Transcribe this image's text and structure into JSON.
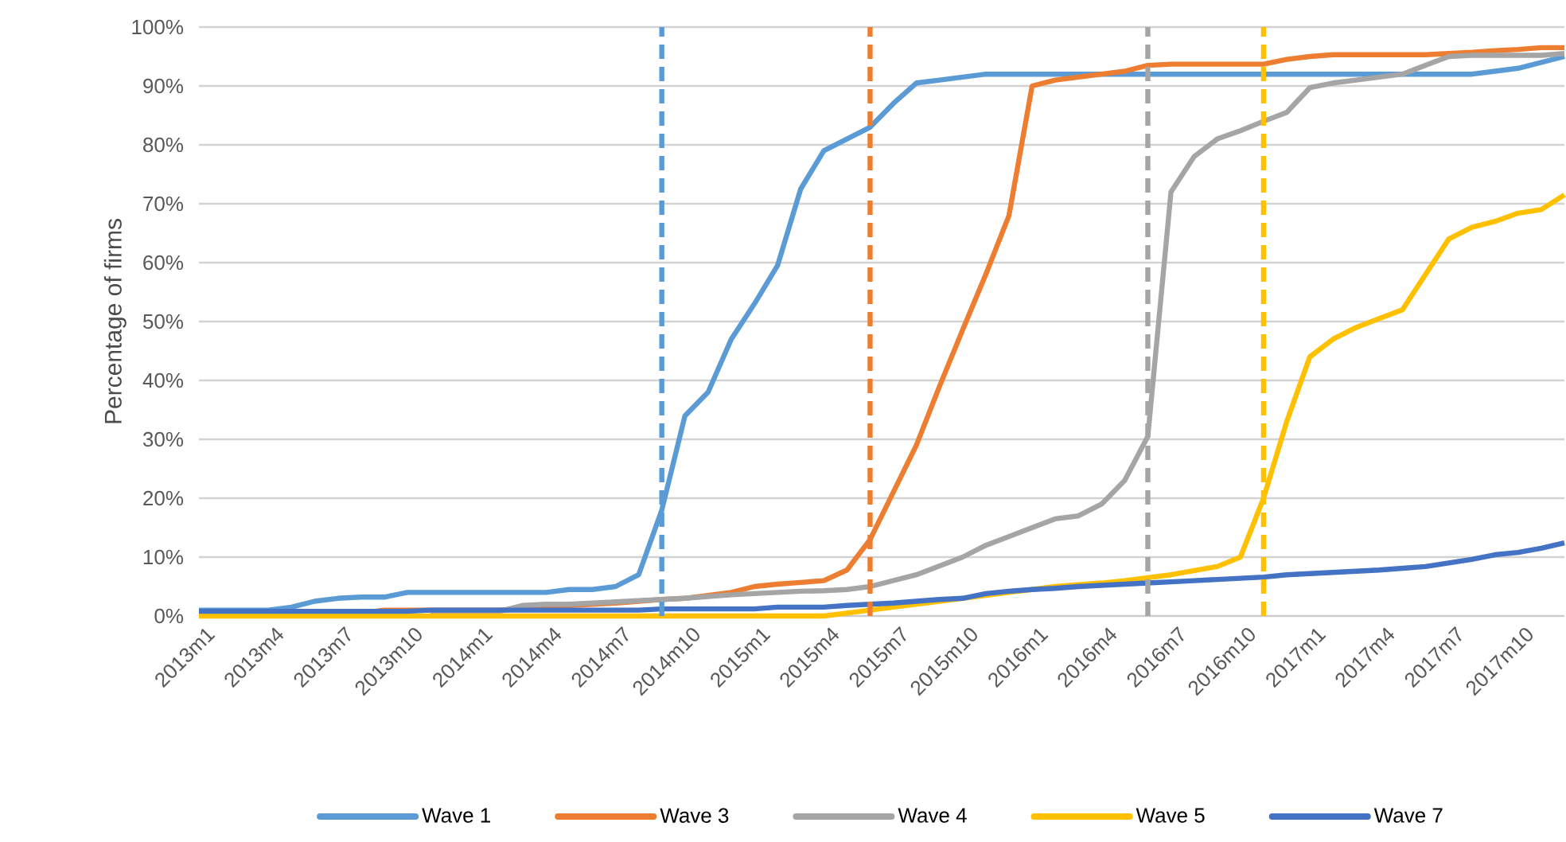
{
  "chart_data": {
    "type": "line",
    "ylabel": "Percentage of firms",
    "x": [
      "2013-01",
      "2013-02",
      "2013-03",
      "2013-04",
      "2013-05",
      "2013-06",
      "2013-07",
      "2013-08",
      "2013-09",
      "2013-10",
      "2013-11",
      "2013-12",
      "2014-01",
      "2014-02",
      "2014-03",
      "2014-04",
      "2014-05",
      "2014-06",
      "2014-07",
      "2014-08",
      "2014-09",
      "2014-10",
      "2014-11",
      "2014-12",
      "2015-01",
      "2015-02",
      "2015-03",
      "2015-04",
      "2015-05",
      "2015-06",
      "2015-07",
      "2015-08",
      "2015-09",
      "2015-10",
      "2015-11",
      "2015-12",
      "2016-01",
      "2016-02",
      "2016-03",
      "2016-04",
      "2016-05",
      "2016-06",
      "2016-07",
      "2016-08",
      "2016-09",
      "2016-10",
      "2016-11",
      "2016-12",
      "2017-01",
      "2017-02",
      "2017-03",
      "2017-04",
      "2017-05",
      "2017-06",
      "2017-07",
      "2017-08",
      "2017-09",
      "2017-10",
      "2017-11",
      "2017-12"
    ],
    "xlim": [
      "2013-01",
      "2017-12"
    ],
    "xticks": [
      {
        "value": "2013-01",
        "label": "2013m1"
      },
      {
        "value": "2013-04",
        "label": "2013m4"
      },
      {
        "value": "2013-07",
        "label": "2013m7"
      },
      {
        "value": "2013-10",
        "label": "2013m10"
      },
      {
        "value": "2014-01",
        "label": "2014m1"
      },
      {
        "value": "2014-04",
        "label": "2014m4"
      },
      {
        "value": "2014-07",
        "label": "2014m7"
      },
      {
        "value": "2014-10",
        "label": "2014m10"
      },
      {
        "value": "2015-01",
        "label": "2015m1"
      },
      {
        "value": "2015-04",
        "label": "2015m4"
      },
      {
        "value": "2015-07",
        "label": "2015m7"
      },
      {
        "value": "2015-10",
        "label": "2015m10"
      },
      {
        "value": "2016-01",
        "label": "2016m1"
      },
      {
        "value": "2016-04",
        "label": "2016m4"
      },
      {
        "value": "2016-07",
        "label": "2016m7"
      },
      {
        "value": "2016-10",
        "label": "2016m10"
      },
      {
        "value": "2017-01",
        "label": "2017m1"
      },
      {
        "value": "2017-04",
        "label": "2017m4"
      },
      {
        "value": "2017-07",
        "label": "2017m7"
      },
      {
        "value": "2017-10",
        "label": "2017m10"
      }
    ],
    "ylim": [
      0,
      100
    ],
    "yticks": [
      {
        "value": 0,
        "label": "0%"
      },
      {
        "value": 10,
        "label": "10%"
      },
      {
        "value": 20,
        "label": "20%"
      },
      {
        "value": 30,
        "label": "30%"
      },
      {
        "value": 40,
        "label": "40%"
      },
      {
        "value": 50,
        "label": "50%"
      },
      {
        "value": 60,
        "label": "60%"
      },
      {
        "value": 70,
        "label": "70%"
      },
      {
        "value": 80,
        "label": "80%"
      },
      {
        "value": 90,
        "label": "90%"
      },
      {
        "value": 100,
        "label": "100%"
      }
    ],
    "grid": "y",
    "legend": "bottom",
    "line_style": "solid",
    "marker": "none",
    "series": [
      {
        "name": "Wave 1",
        "color": "#5b9bd5",
        "values": [
          1,
          1,
          1,
          1,
          1.5,
          2.5,
          3,
          3.2,
          3.2,
          4,
          4,
          4,
          4,
          4,
          4,
          4,
          4.5,
          4.5,
          5,
          7,
          18,
          34,
          38,
          47,
          53,
          59.5,
          72.5,
          79,
          81,
          83,
          87,
          90.5,
          91,
          91.5,
          92,
          92,
          92,
          92,
          92,
          92,
          92,
          92,
          92,
          92,
          92,
          92,
          92,
          92,
          92,
          92,
          92,
          92,
          92,
          92,
          92,
          92,
          92.5,
          93,
          94,
          95
        ]
      },
      {
        "name": "Wave 3",
        "color": "#ed7d31",
        "values": [
          null,
          null,
          null,
          null,
          null,
          null,
          0.5,
          0.5,
          1,
          1,
          1,
          1,
          1,
          1,
          1.3,
          1.5,
          1.8,
          2,
          2.2,
          2.5,
          2.8,
          3,
          3.5,
          4,
          5,
          5.4,
          5.7,
          6,
          7.8,
          13,
          21,
          29,
          39,
          48.6,
          58,
          68,
          90,
          91,
          91.5,
          92,
          92.5,
          93.5,
          93.7,
          93.7,
          93.7,
          93.7,
          93.7,
          94.5,
          95,
          95.3,
          95.3,
          95.3,
          95.3,
          95.3,
          95.5,
          95.7,
          96,
          96.2,
          96.5,
          96.5
        ]
      },
      {
        "name": "Wave 4",
        "color": "#a5a5a5",
        "values": [
          null,
          null,
          null,
          null,
          null,
          null,
          null,
          null,
          null,
          null,
          0.8,
          0.8,
          0.8,
          0.8,
          1.8,
          2,
          2,
          2.2,
          2.4,
          2.6,
          2.8,
          3,
          3.3,
          3.6,
          3.8,
          4,
          4.2,
          4.3,
          4.5,
          5,
          6,
          7,
          8.5,
          10,
          12,
          13.5,
          15,
          16.5,
          17,
          19,
          23,
          30.5,
          72,
          78,
          81,
          82.4,
          84,
          85.5,
          89.7,
          90.5,
          91,
          91.5,
          92,
          93.5,
          95,
          95.2,
          95.2,
          95.2,
          95.2,
          95.5
        ]
      },
      {
        "name": "Wave 5",
        "color": "#ffc000",
        "values": [
          0,
          0,
          0,
          0,
          0,
          0,
          0,
          0,
          0,
          0,
          0,
          0,
          0,
          0,
          0,
          0,
          0,
          0,
          0,
          0,
          0,
          0,
          0,
          0,
          0,
          0,
          0,
          0,
          0.5,
          1,
          1.5,
          2,
          2.5,
          3,
          3.5,
          4,
          4.5,
          5,
          5.3,
          5.6,
          6,
          6.5,
          7,
          7.7,
          8.4,
          10,
          20,
          33,
          44,
          47,
          49,
          50.5,
          52,
          58,
          64,
          66,
          67,
          68.4,
          69,
          71.5
        ]
      },
      {
        "name": "Wave 7",
        "color": "#4472c4",
        "values": [
          0.8,
          0.8,
          0.8,
          0.8,
          0.8,
          0.8,
          0.8,
          0.8,
          0.8,
          0.8,
          1,
          1,
          1,
          1,
          1,
          1,
          1,
          1,
          1,
          1,
          1.2,
          1.2,
          1.2,
          1.2,
          1.2,
          1.5,
          1.5,
          1.5,
          1.8,
          2,
          2.2,
          2.5,
          2.8,
          3,
          3.8,
          4.2,
          4.5,
          4.7,
          5,
          5.2,
          5.4,
          5.6,
          5.8,
          6,
          6.2,
          6.4,
          6.6,
          7,
          7.2,
          7.4,
          7.6,
          7.8,
          8.1,
          8.4,
          9,
          9.6,
          10.4,
          10.8,
          11.5,
          12.4
        ]
      }
    ],
    "ref_lines": [
      {
        "axis": "x",
        "value": "2014-09",
        "color": "#5b9bd5",
        "line_style": "dashed"
      },
      {
        "axis": "x",
        "value": "2015-06",
        "color": "#ed7d31",
        "line_style": "dashed"
      },
      {
        "axis": "x",
        "value": "2016-06",
        "color": "#a5a5a5",
        "line_style": "dashed"
      },
      {
        "axis": "x",
        "value": "2016-11",
        "color": "#ffc000",
        "line_style": "dashed"
      }
    ]
  }
}
